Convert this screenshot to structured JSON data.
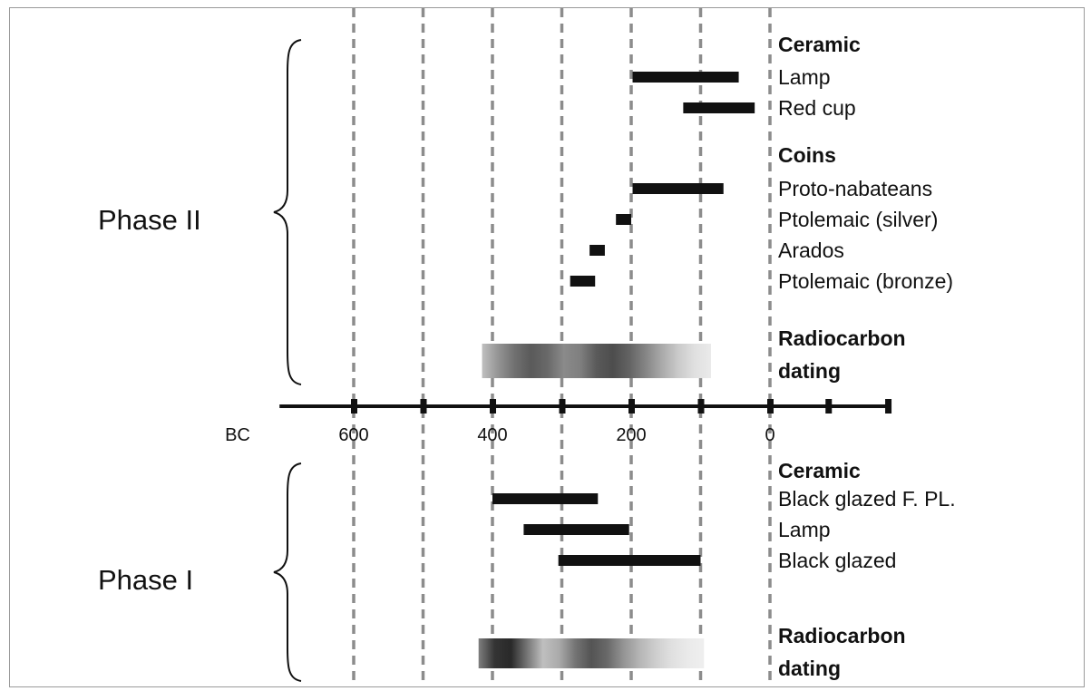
{
  "chart_data": {
    "type": "timeline",
    "axis": {
      "era_label": "BC",
      "tick_values": [
        600,
        500,
        400,
        300,
        200,
        100,
        0,
        -84,
        -170
      ],
      "tick_labels": [
        {
          "value": 600,
          "label": "600"
        },
        {
          "value": 400,
          "label": "400"
        },
        {
          "value": 200,
          "label": "200"
        },
        {
          "value": 0,
          "label": "0"
        }
      ],
      "range": [
        720,
        -170
      ],
      "gridlines": [
        600,
        500,
        400,
        300,
        200,
        100,
        0
      ]
    },
    "phases": [
      {
        "label": "Phase II",
        "groups": [
          {
            "title": "Ceramic",
            "items": [
              {
                "label": "Lamp",
                "start": 198,
                "end": 45
              },
              {
                "label": "Red cup",
                "start": 125,
                "end": 22
              }
            ]
          },
          {
            "title": "Coins",
            "items": [
              {
                "label": "Proto-nabateans",
                "start": 198,
                "end": 67
              },
              {
                "label": "Ptolemaic (silver)",
                "start": 222,
                "end": 200
              },
              {
                "label": "Arados",
                "start": 260,
                "end": 238
              },
              {
                "label": "Ptolemaic (bronze)",
                "start": 288,
                "end": 252
              }
            ]
          }
        ],
        "radiocarbon": {
          "title_lines": [
            "Radiocarbon",
            "dating"
          ],
          "range": [
            415,
            85
          ],
          "density": [
            0.25,
            0.45,
            0.62,
            0.72,
            0.65,
            0.5,
            0.55,
            0.72,
            0.78,
            0.68,
            0.52,
            0.35,
            0.2,
            0.1,
            0.05
          ]
        }
      },
      {
        "label": "Phase I",
        "groups": [
          {
            "title": "Ceramic",
            "items": [
              {
                "label": "Black glazed F. PL.",
                "start": 400,
                "end": 248
              },
              {
                "label": "Lamp",
                "start": 355,
                "end": 203
              },
              {
                "label": "Black glazed",
                "start": 305,
                "end": 100
              }
            ]
          }
        ],
        "radiocarbon": {
          "title_lines": [
            "Radiocarbon",
            "dating"
          ],
          "range": [
            420,
            95
          ],
          "density": [
            0.55,
            0.9,
            0.95,
            0.6,
            0.25,
            0.35,
            0.6,
            0.75,
            0.65,
            0.45,
            0.3,
            0.18,
            0.1,
            0.05,
            0.03
          ]
        }
      }
    ]
  }
}
